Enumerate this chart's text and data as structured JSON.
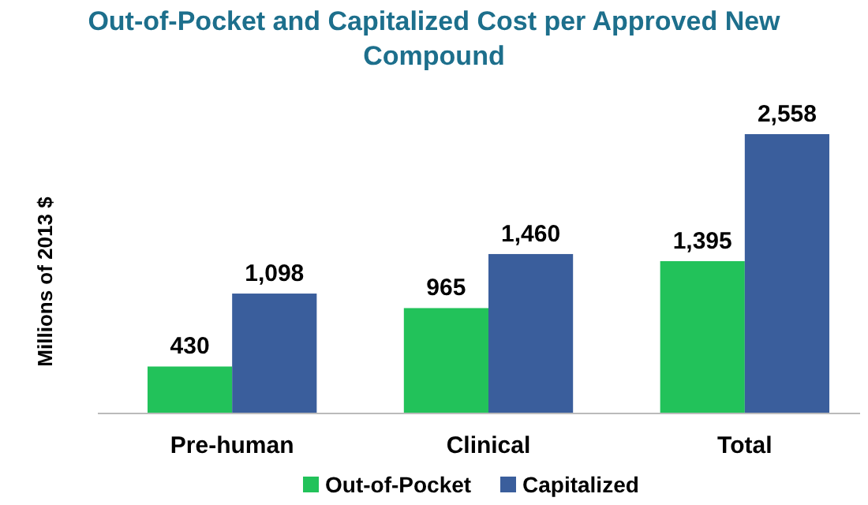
{
  "chart_data": {
    "type": "bar",
    "title": "Out-of-Pocket and Capitalized Cost per Approved New Compound",
    "ylabel": "Millions of 2013 $",
    "categories": [
      "Pre-human",
      "Clinical",
      "Total"
    ],
    "series": [
      {
        "name": "Out-of-Pocket",
        "color": "#22c25a",
        "values": [
          430,
          965,
          1395
        ],
        "value_labels": [
          "430",
          "965",
          "1,395"
        ]
      },
      {
        "name": "Capitalized",
        "color": "#3a5e9c",
        "values": [
          1098,
          1460,
          2558
        ],
        "value_labels": [
          "1,098",
          "1,460",
          "2,558"
        ]
      }
    ],
    "legend": "bottom"
  }
}
